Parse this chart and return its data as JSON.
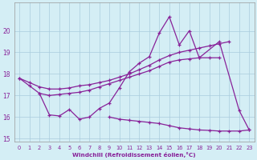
{
  "xlabel": "Windchill (Refroidissement éolien,°C)",
  "background_color": "#d4eef5",
  "grid_color": "#aaccdd",
  "line_color": "#882299",
  "ylim_bottom": 14.85,
  "ylim_top": 21.3,
  "yticks": [
    15,
    16,
    17,
    18,
    19,
    20
  ],
  "xticks": [
    0,
    1,
    2,
    3,
    4,
    5,
    6,
    7,
    8,
    9,
    10,
    11,
    12,
    13,
    14,
    15,
    16,
    17,
    18,
    19,
    20,
    21,
    22,
    23
  ],
  "line1_x": [
    0,
    1,
    2,
    3,
    4,
    5,
    6,
    7,
    8,
    9,
    10,
    11,
    12,
    13,
    14,
    15,
    16,
    17,
    18,
    20,
    22,
    23
  ],
  "line1_y": [
    17.8,
    17.45,
    17.1,
    16.1,
    16.05,
    16.35,
    15.9,
    16.0,
    16.4,
    16.65,
    17.35,
    18.1,
    18.5,
    18.8,
    19.9,
    20.65,
    19.35,
    20.0,
    18.75,
    19.5,
    16.3,
    15.4
  ],
  "line2_x": [
    0,
    1,
    2,
    3,
    4,
    5,
    6,
    7,
    8,
    9,
    10,
    11,
    12,
    13,
    14,
    15,
    16,
    17,
    18,
    19,
    20,
    21
  ],
  "line2_y": [
    17.8,
    17.6,
    17.4,
    17.3,
    17.3,
    17.35,
    17.45,
    17.5,
    17.6,
    17.7,
    17.85,
    18.0,
    18.2,
    18.4,
    18.65,
    18.85,
    19.0,
    19.1,
    19.2,
    19.3,
    19.4,
    19.5
  ],
  "line3_x": [
    2,
    3,
    4,
    5,
    6,
    7,
    8,
    9,
    10,
    11,
    12,
    13,
    14,
    15,
    16,
    17,
    18,
    19,
    20
  ],
  "line3_y": [
    17.1,
    17.0,
    17.05,
    17.1,
    17.15,
    17.25,
    17.4,
    17.55,
    17.7,
    17.85,
    18.0,
    18.15,
    18.35,
    18.55,
    18.65,
    18.7,
    18.75,
    18.75,
    18.75
  ],
  "line4_x": [
    9,
    10,
    11,
    12,
    13,
    14,
    15,
    16,
    17,
    18,
    19,
    20,
    21,
    22,
    23
  ],
  "line4_y": [
    16.0,
    15.9,
    15.85,
    15.8,
    15.75,
    15.7,
    15.6,
    15.5,
    15.45,
    15.4,
    15.38,
    15.35,
    15.35,
    15.35,
    15.4
  ]
}
